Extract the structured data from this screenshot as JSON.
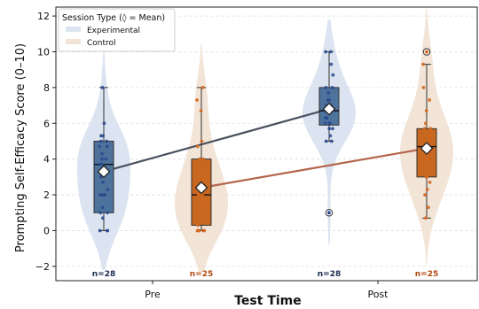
{
  "chart_data": {
    "type": "violin-box-strip",
    "title": "",
    "xlabel": "Test Time",
    "ylabel": "Prompting Self-Efficacy Score (0–10)",
    "ylim": [
      -2.8,
      12.5
    ],
    "yticks": [
      -2,
      0,
      2,
      4,
      6,
      8,
      10,
      12
    ],
    "ytick_labels": [
      "−2",
      "0",
      "2",
      "4",
      "6",
      "8",
      "10",
      "12"
    ],
    "categories": [
      "Pre",
      "Post"
    ],
    "grid": true,
    "legend": {
      "title": "Session Type (◊ = Mean)",
      "position": "top-left",
      "entries": [
        "Experimental",
        "Control"
      ]
    },
    "colors": {
      "experimental_violin": "#dbe4f0",
      "control_violin": "#f2e4d6",
      "experimental_box": "#4d729c",
      "control_box": "#c8671f",
      "experimental_points": "#2e4a90",
      "control_points": "#d4671e",
      "experimental_line": "#4a5060",
      "control_line": "#b3664d"
    },
    "series": [
      {
        "name": "Experimental",
        "groups": [
          {
            "x": "Pre",
            "n_label": "n=28",
            "box": {
              "min": 0,
              "q1": 1,
              "median": 3.7,
              "q3": 5,
              "max": 8
            },
            "mean": 3.3,
            "violin_range": [
              -2.2,
              10.2
            ],
            "points": [
              0,
              0,
              0,
              0.7,
              1,
              1,
              1.3,
              2,
              2,
              2,
              2,
              2.3,
              2.7,
              3,
              3.3,
              3.7,
              3.7,
              4,
              4,
              4.3,
              4.7,
              4.7,
              5,
              5,
              5.3,
              5.3,
              6,
              8
            ],
            "outliers": []
          },
          {
            "x": "Post",
            "n_label": "n=28",
            "box": {
              "min": 5,
              "q1": 5.9,
              "median": 6.7,
              "q3": 8,
              "max": 10
            },
            "mean": 6.8,
            "violin_range": [
              -0.8,
              11.8
            ],
            "points": [
              5,
              5,
              5.3,
              5.7,
              5.7,
              6,
              6,
              6,
              6.3,
              6.3,
              6.3,
              6.7,
              6.7,
              6.7,
              6.7,
              7,
              7,
              7,
              7.3,
              7.3,
              7.7,
              8,
              8,
              8.7,
              9.3,
              10,
              10
            ],
            "outliers": [
              1
            ]
          }
        ]
      },
      {
        "name": "Control",
        "groups": [
          {
            "x": "Pre",
            "n_label": "n=25",
            "box": {
              "min": 0,
              "q1": 0.3,
              "median": 2,
              "q3": 4,
              "max": 8
            },
            "mean": 2.4,
            "violin_range": [
              -2.3,
              10.4
            ],
            "points": [
              0,
              0,
              0,
              0,
              0,
              0.3,
              0.7,
              1,
              1.3,
              1.7,
              2,
              2,
              2,
              2,
              2.3,
              2.7,
              3,
              3.3,
              4,
              4,
              4.7,
              5,
              6.7,
              7.3,
              8
            ],
            "outliers": []
          },
          {
            "x": "Post",
            "n_label": "n=25",
            "box": {
              "min": 0.7,
              "q1": 3,
              "median": 4.7,
              "q3": 5.7,
              "max": 9.3
            },
            "mean": 4.6,
            "violin_range": [
              -1.9,
              12.4
            ],
            "points": [
              0.7,
              1.3,
              2,
              2.3,
              2.7,
              3,
              3,
              3.3,
              3.7,
              4,
              4,
              4.3,
              4.7,
              4.7,
              5,
              5.3,
              5.3,
              5.7,
              5.7,
              6,
              6.7,
              7.3,
              8,
              9.3
            ],
            "outliers": [
              10
            ]
          }
        ]
      }
    ]
  }
}
